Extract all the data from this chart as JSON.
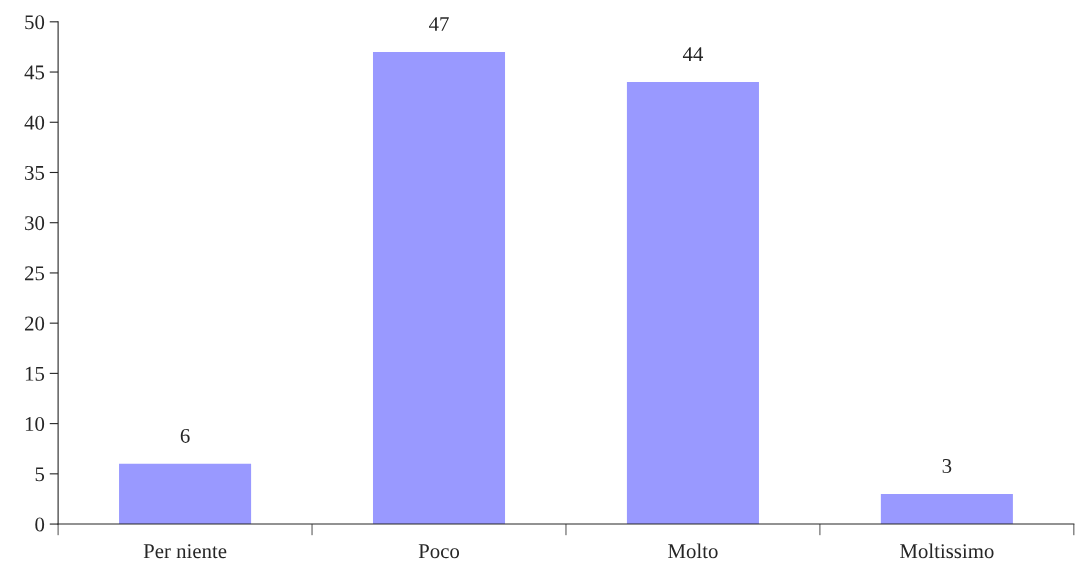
{
  "chart_data": {
    "type": "bar",
    "categories": [
      "Per niente",
      "Poco",
      "Molto",
      "Moltissimo"
    ],
    "values": [
      6,
      47,
      44,
      3
    ],
    "color": "#9999ff",
    "ylim": [
      0,
      50
    ],
    "yticks": [
      0,
      5,
      10,
      15,
      20,
      25,
      30,
      35,
      40,
      45,
      50
    ],
    "data_labels": true,
    "grid": false
  }
}
